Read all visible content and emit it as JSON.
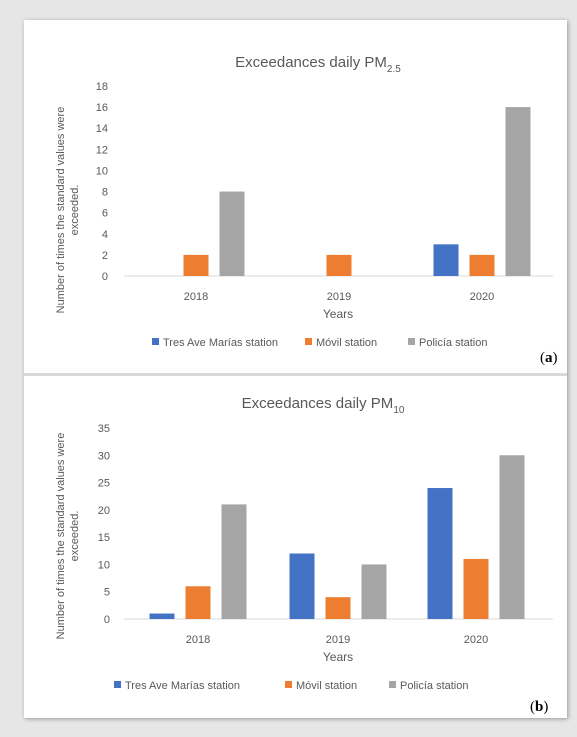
{
  "colors": {
    "tres": "#4472c4",
    "movil": "#ed7d31",
    "policia": "#a5a5a5",
    "axis": "#d9d9d9",
    "text": "#595959"
  },
  "chart_data": [
    {
      "type": "bar",
      "title": "Exceedances daily PM",
      "title_subscript": "2.5",
      "xlabel": "Years",
      "ylabel_line1": "Number of times the standard values were",
      "ylabel_line2": "exceeded.",
      "categories": [
        "2018",
        "2019",
        "2020"
      ],
      "ylim": [
        0,
        18
      ],
      "yticks": [
        "0",
        "2",
        "4",
        "6",
        "8",
        "10",
        "12",
        "14",
        "16",
        "18"
      ],
      "series": [
        {
          "name": "Tres Ave Marías station",
          "color_key": "tres",
          "values": [
            0,
            0,
            3
          ]
        },
        {
          "name": "Móvil station",
          "color_key": "movil",
          "values": [
            2,
            2,
            2
          ]
        },
        {
          "name": "Policía station",
          "color_key": "policia",
          "values": [
            8,
            0,
            16
          ]
        }
      ],
      "grid": false,
      "legend": "bottom",
      "panel_label": "a"
    },
    {
      "type": "bar",
      "title": "Exceedances daily PM",
      "title_subscript": "10",
      "xlabel": "Years",
      "ylabel_line1": "Number of times the standard values were",
      "ylabel_line2": "exceeded.",
      "categories": [
        "2018",
        "2019",
        "2020"
      ],
      "ylim": [
        0,
        35
      ],
      "yticks": [
        "0",
        "5",
        "10",
        "15",
        "20",
        "25",
        "30",
        "35"
      ],
      "series": [
        {
          "name": "Tres Ave Marías station",
          "color_key": "tres",
          "values": [
            1,
            12,
            24
          ]
        },
        {
          "name": "Móvil station",
          "color_key": "movil",
          "values": [
            6,
            4,
            11
          ]
        },
        {
          "name": "Policía station",
          "color_key": "policia",
          "values": [
            21,
            10,
            30
          ]
        }
      ],
      "grid": false,
      "legend": "bottom",
      "panel_label": "b"
    }
  ]
}
